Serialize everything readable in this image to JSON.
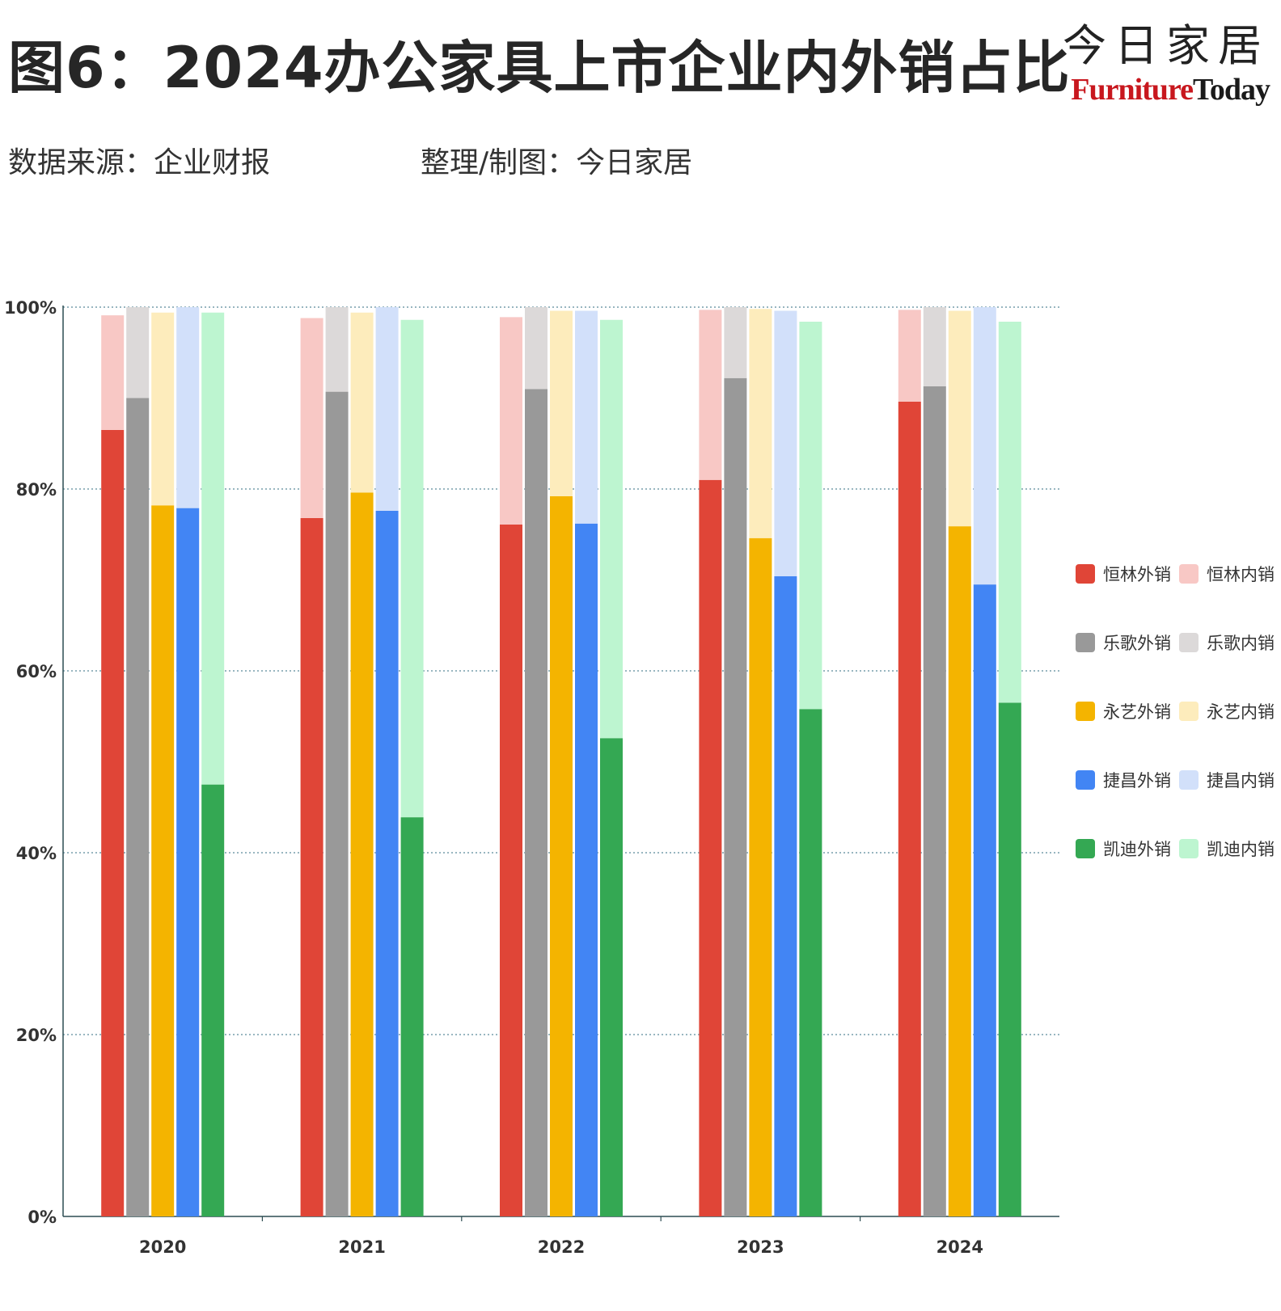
{
  "header": {
    "title": "图6：2024办公家具上市企业内外销占比",
    "source": "数据来源：企业财报",
    "credit": "整理/制图：今日家居"
  },
  "brand": {
    "cn": "今日家居",
    "en_first": "Furniture",
    "en_second": "Today"
  },
  "chart_data": {
    "type": "bar",
    "stacked": true,
    "categories": [
      "2020",
      "2021",
      "2022",
      "2023",
      "2024"
    ],
    "ylim": [
      0,
      100
    ],
    "yticks": [
      "0%",
      "20%",
      "40%",
      "60%",
      "80%",
      "100%"
    ],
    "grid": true,
    "legend_position": "right",
    "companies": [
      {
        "export_label": "恒林外销",
        "domestic_label": "恒林内销",
        "export_color": "#e04537",
        "domestic_color": "#f8c8c5",
        "export": [
          86.5,
          76.8,
          76.1,
          81.0,
          89.6
        ],
        "domestic": [
          12.6,
          22.0,
          22.8,
          18.7,
          10.1
        ]
      },
      {
        "export_label": "乐歌外销",
        "domestic_label": "乐歌内销",
        "export_color": "#999999",
        "domestic_color": "#dcd9d9",
        "export": [
          90.0,
          90.7,
          91.0,
          92.2,
          91.3
        ],
        "domestic": [
          10.0,
          9.3,
          9.0,
          7.8,
          8.7
        ]
      },
      {
        "export_label": "永艺外销",
        "domestic_label": "永艺内销",
        "export_color": "#f4b400",
        "domestic_color": "#fdecbc",
        "export": [
          78.2,
          79.6,
          79.2,
          74.6,
          75.9
        ],
        "domestic": [
          21.2,
          19.8,
          20.4,
          25.2,
          23.7
        ]
      },
      {
        "export_label": "捷昌外销",
        "domestic_label": "捷昌内销",
        "export_color": "#4285f4",
        "domestic_color": "#d2e0fa",
        "export": [
          77.9,
          77.6,
          76.2,
          70.4,
          69.5
        ],
        "domestic": [
          22.1,
          22.4,
          23.4,
          29.2,
          30.5
        ]
      },
      {
        "export_label": "凯迪外销",
        "domestic_label": "凯迪内销",
        "export_color": "#34a853",
        "domestic_color": "#bdf5d0",
        "export": [
          47.5,
          43.9,
          52.6,
          55.8,
          56.5
        ],
        "domestic": [
          51.9,
          54.7,
          46.0,
          42.6,
          41.9
        ]
      }
    ]
  }
}
